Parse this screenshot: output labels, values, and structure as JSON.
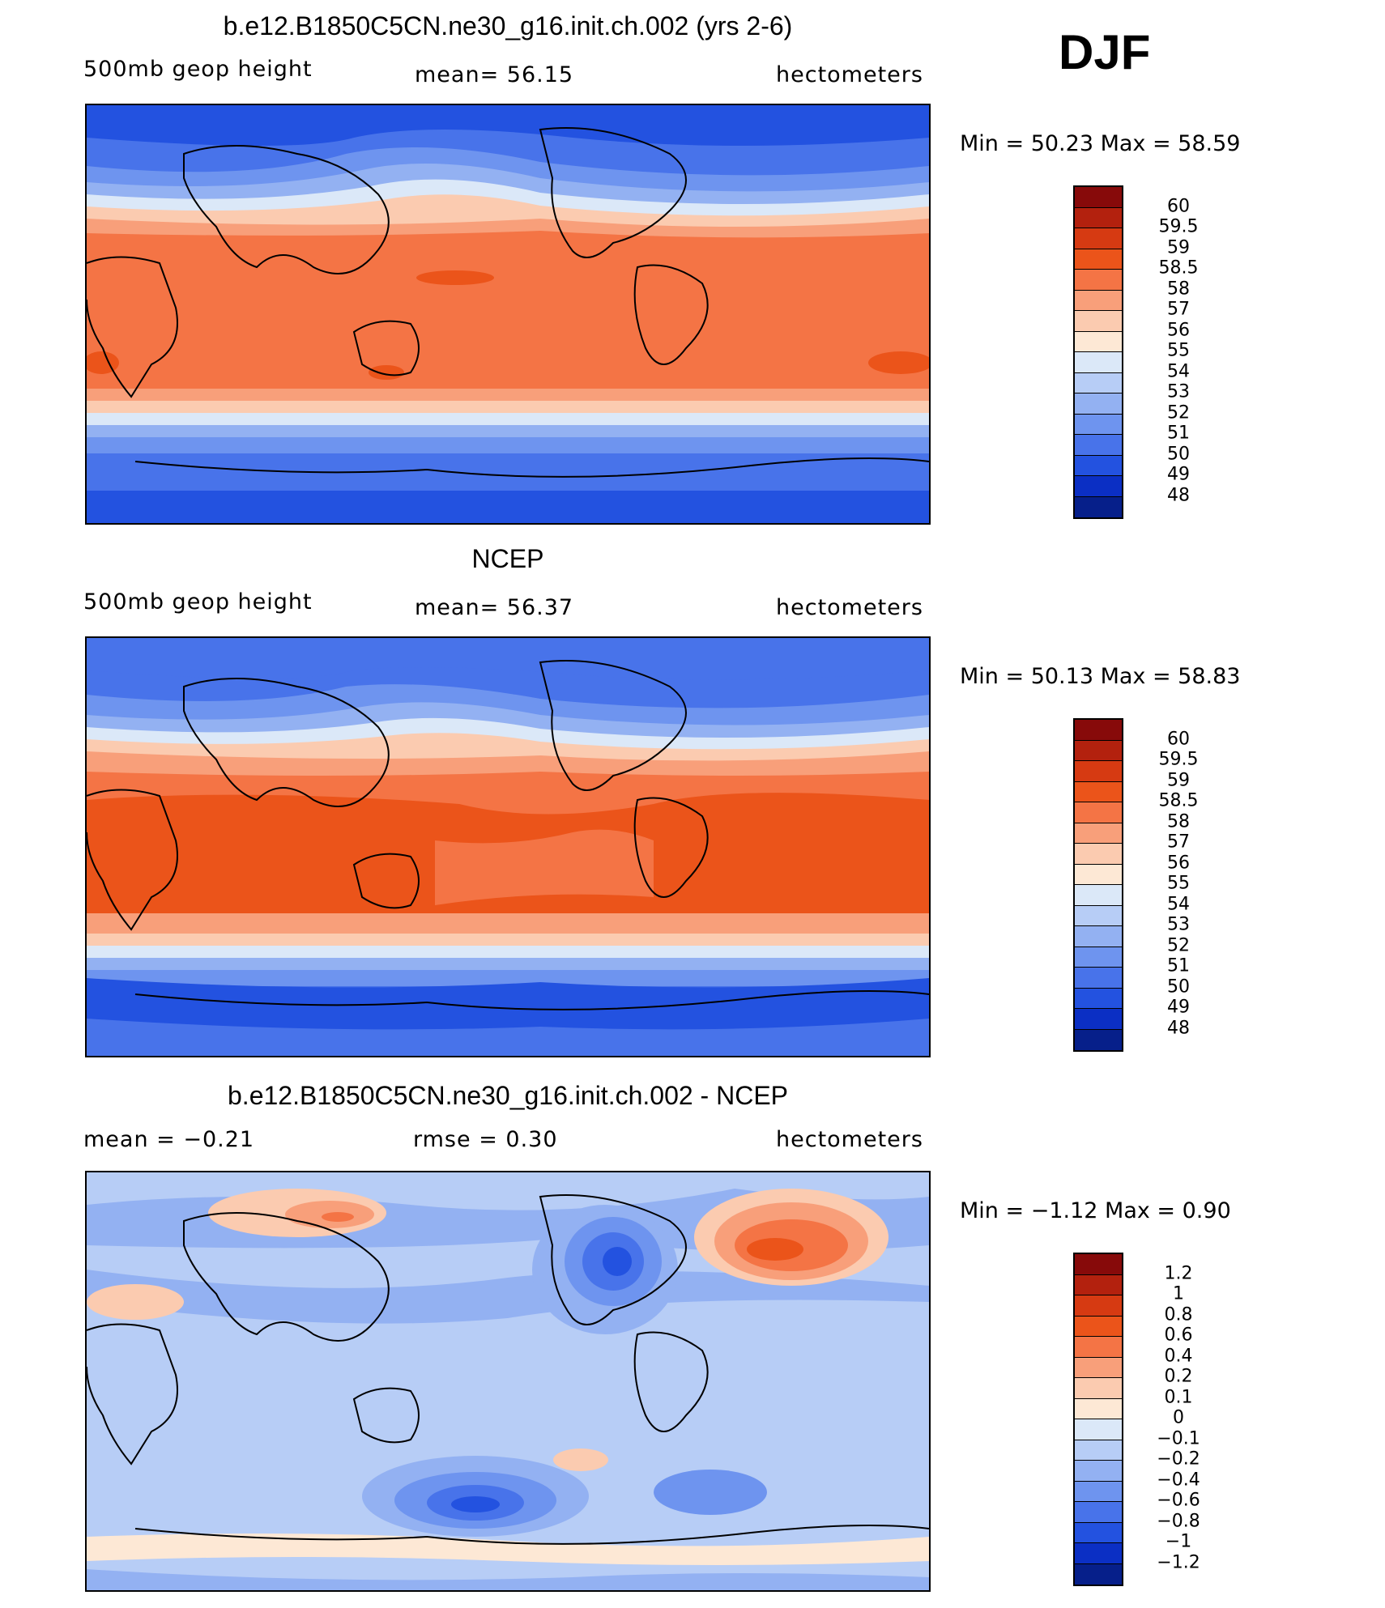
{
  "season": "DJF",
  "panels": [
    {
      "title": "b.e12.B1850C5CN.ne30_g16.init.ch.002 (yrs 2-6)",
      "left_label": "500mb  geop  height",
      "stat_label": "mean=   56.15",
      "units": "hectometers",
      "minmax": "Min  =    50.23  Max  =    58.59",
      "levels": [
        "60",
        "59.5",
        "59",
        "58.5",
        "58",
        "57",
        "56",
        "55",
        "54",
        "53",
        "52",
        "51",
        "50",
        "49",
        "48"
      ],
      "colors": [
        "#870a0a",
        "#b3210e",
        "#d63a12",
        "#eb541a",
        "#f47445",
        "#f89f7a",
        "#fbcbb0",
        "#fde8d5",
        "#dbe8f8",
        "#b7cdf6",
        "#93b1f2",
        "#6e94ef",
        "#4873ea",
        "#2352e0",
        "#0b2fc4",
        "#061f8a"
      ]
    },
    {
      "title": "NCEP",
      "left_label": "500mb  geop  height",
      "stat_label": "mean=   56.37",
      "units": "hectometers",
      "minmax": "Min  =    50.13  Max  =    58.83",
      "levels": [
        "60",
        "59.5",
        "59",
        "58.5",
        "58",
        "57",
        "56",
        "55",
        "54",
        "53",
        "52",
        "51",
        "50",
        "49",
        "48"
      ],
      "colors": [
        "#870a0a",
        "#b3210e",
        "#d63a12",
        "#eb541a",
        "#f47445",
        "#f89f7a",
        "#fbcbb0",
        "#fde8d5",
        "#dbe8f8",
        "#b7cdf6",
        "#93b1f2",
        "#6e94ef",
        "#4873ea",
        "#2352e0",
        "#0b2fc4",
        "#061f8a"
      ]
    },
    {
      "title": "b.e12.B1850C5CN.ne30_g16.init.ch.002 - NCEP",
      "left_label": "mean  =    −0.21",
      "stat_label": "rmse  =     0.30",
      "units": "hectometers",
      "minmax": "Min  =   −1.12  Max  =     0.90",
      "levels": [
        "1.2",
        "1",
        "0.8",
        "0.6",
        "0.4",
        "0.2",
        "0.1",
        "0",
        "−0.1",
        "−0.2",
        "−0.4",
        "−0.6",
        "−0.8",
        "−1",
        "−1.2"
      ],
      "colors": [
        "#870a0a",
        "#b3210e",
        "#d63a12",
        "#eb541a",
        "#f47445",
        "#f89f7a",
        "#fbcbb0",
        "#fde8d5",
        "#dbe8f8",
        "#b7cdf6",
        "#93b1f2",
        "#6e94ef",
        "#4873ea",
        "#2352e0",
        "#0b2fc4",
        "#061f8a"
      ]
    }
  ]
}
